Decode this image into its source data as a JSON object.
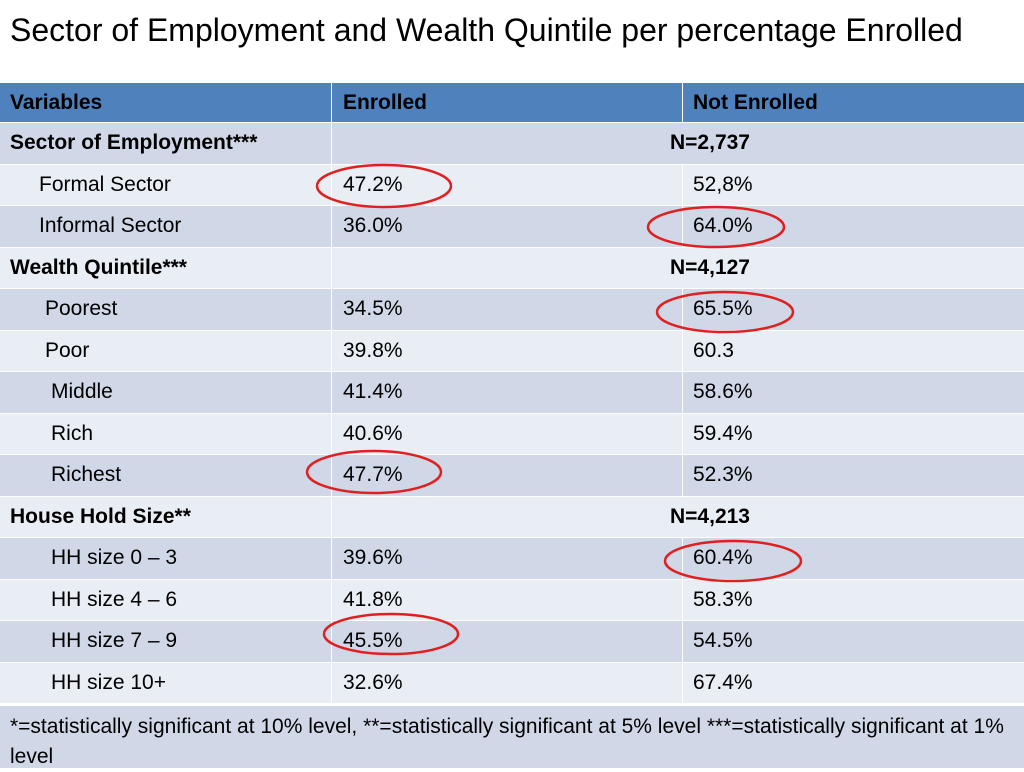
{
  "title": "Sector of Employment and Wealth Quintile per percentage Enrolled",
  "header": {
    "variables": "Variables",
    "enrolled": "Enrolled",
    "not_enrolled": "Not Enrolled"
  },
  "sections": {
    "employment": {
      "label": "Sector of Employment***",
      "n": "N=2,737",
      "rows": [
        {
          "label": "Formal Sector",
          "enrolled": "47.2%",
          "not_enrolled": "52,8%"
        },
        {
          "label": "Informal Sector",
          "enrolled": "36.0%",
          "not_enrolled": "64.0%"
        }
      ]
    },
    "wealth": {
      "label": "Wealth Quintile***",
      "n": "N=4,127",
      "rows": [
        {
          "label": "Poorest",
          "enrolled": "34.5%",
          "not_enrolled": "65.5%"
        },
        {
          "label": "Poor",
          "enrolled": "39.8%",
          "not_enrolled": "60.3"
        },
        {
          "label": "Middle",
          "enrolled": "41.4%",
          "not_enrolled": "58.6%"
        },
        {
          "label": "Rich",
          "enrolled": "40.6%",
          "not_enrolled": "59.4%"
        },
        {
          "label": "Richest",
          "enrolled": "47.7%",
          "not_enrolled": "52.3%"
        }
      ]
    },
    "household": {
      "label": "House Hold Size**",
      "n": "N=4,213",
      "rows": [
        {
          "label": "HH size 0 – 3",
          "enrolled": "39.6%",
          "not_enrolled": "60.4%"
        },
        {
          "label": "HH size 4 – 6",
          "enrolled": "41.8%",
          "not_enrolled": "58.3%"
        },
        {
          "label": "HH size 7 – 9",
          "enrolled": "45.5%",
          "not_enrolled": "54.5%"
        },
        {
          "label": "HH size 10+",
          "enrolled": "32.6%",
          "not_enrolled": "67.4%"
        }
      ]
    }
  },
  "footnote": " *=statistically significant at 10% level, **=statistically significant at 5% level ***=statistically significant at 1% level",
  "colors": {
    "header_bg": "#4f81bd",
    "row_dark": "#d0d8e8",
    "row_light": "#e9edf4",
    "highlight_circle": "#e02020"
  }
}
